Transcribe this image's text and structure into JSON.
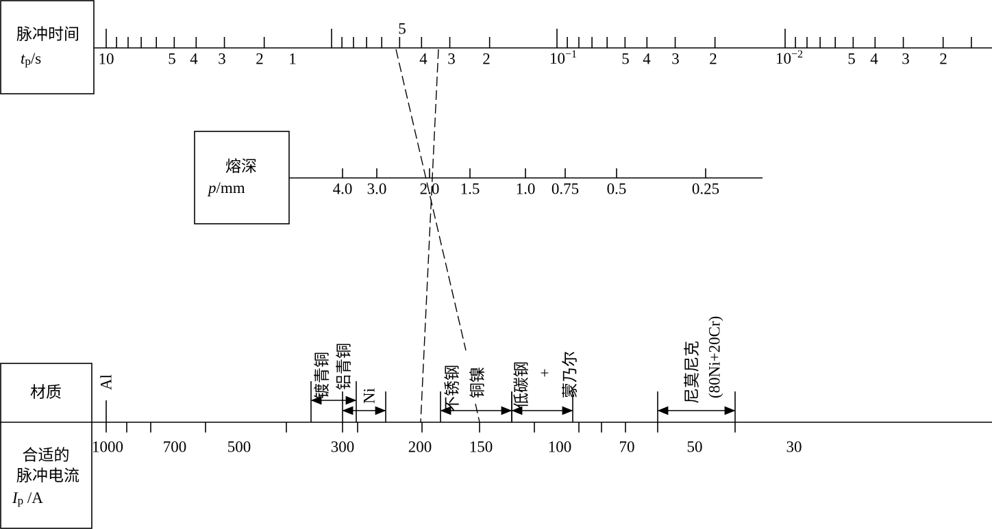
{
  "pulse_time": {
    "title": "脉冲时间",
    "symbol": "t",
    "subscript": "p",
    "unit": "/s",
    "scale_labels": [
      "10",
      "5",
      "4",
      "3",
      "2",
      "1",
      "5",
      "4",
      "3",
      "2",
      {
        "base": "10",
        "exponent": "−1"
      },
      "5",
      "4",
      "3",
      "2",
      {
        "base": "10",
        "exponent": "−2"
      },
      "5",
      "4",
      "3",
      "2"
    ]
  },
  "penetration": {
    "title": "熔深",
    "symbol": "p",
    "unit": "/mm",
    "scale_labels": [
      "4.0",
      "3.0",
      "2.0",
      "1.5",
      "1.0",
      "0.75",
      "0.5",
      "0.25"
    ]
  },
  "material": {
    "title": "材质",
    "items": [
      {
        "lines": [
          "Al"
        ]
      },
      {
        "lines": [
          "镀青铜",
          "铝青铜"
        ]
      },
      {
        "lines": [
          "Ni"
        ]
      },
      {
        "lines": [
          "不锈钢",
          "铜镍"
        ]
      },
      {
        "lines": [
          "低碳钢",
          "+",
          "蒙乃尔"
        ]
      },
      {
        "lines": [
          "尼莫尼克",
          "(80Ni+20Cr)"
        ]
      }
    ]
  },
  "current": {
    "title_lines": [
      "合适的",
      "脉冲电流"
    ],
    "symbol": "I",
    "subscript": "p",
    "unit": " /A",
    "scale_labels": [
      "1000",
      "700",
      "500",
      "300",
      "200",
      "150",
      "100",
      "70",
      "50",
      "30"
    ]
  }
}
